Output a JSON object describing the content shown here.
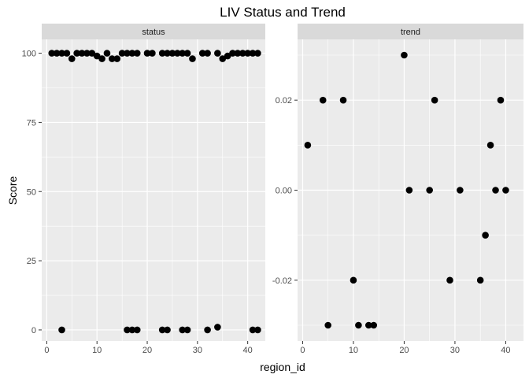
{
  "chart_data": {
    "type": "scatter",
    "title": "LIV Status and Trend",
    "xlabel": "region_id",
    "ylabel": "Score",
    "grid": true,
    "legend": "none",
    "colors": {
      "panel_bg": "#ebebeb",
      "grid": "#ffffff",
      "strip_bg": "#d9d9d9",
      "point": "#000000"
    },
    "panels": [
      {
        "name": "status",
        "xlim": [
          -1,
          43.5
        ],
        "ylim": [
          -4,
          105
        ],
        "x_ticks": [
          0,
          10,
          20,
          30,
          40
        ],
        "y_ticks": [
          0,
          25,
          50,
          75,
          100
        ],
        "y_tick_labels": [
          "0",
          "25",
          "50",
          "75",
          "100"
        ],
        "points": [
          [
            1,
            100
          ],
          [
            2,
            100
          ],
          [
            3,
            100
          ],
          [
            4,
            100
          ],
          [
            5,
            98
          ],
          [
            6,
            100
          ],
          [
            7,
            100
          ],
          [
            8,
            100
          ],
          [
            9,
            100
          ],
          [
            10,
            99
          ],
          [
            11,
            98
          ],
          [
            12,
            100
          ],
          [
            13,
            98
          ],
          [
            14,
            98
          ],
          [
            15,
            100
          ],
          [
            16,
            100
          ],
          [
            17,
            100
          ],
          [
            18,
            100
          ],
          [
            20,
            100
          ],
          [
            21,
            100
          ],
          [
            23,
            100
          ],
          [
            24,
            100
          ],
          [
            25,
            100
          ],
          [
            26,
            100
          ],
          [
            27,
            100
          ],
          [
            28,
            100
          ],
          [
            29,
            98
          ],
          [
            31,
            100
          ],
          [
            32,
            100
          ],
          [
            34,
            100
          ],
          [
            35,
            98
          ],
          [
            36,
            99
          ],
          [
            37,
            100
          ],
          [
            38,
            100
          ],
          [
            39,
            100
          ],
          [
            40,
            100
          ],
          [
            41,
            100
          ],
          [
            42,
            100
          ],
          [
            3,
            0
          ],
          [
            16,
            0
          ],
          [
            17,
            0
          ],
          [
            18,
            0
          ],
          [
            23,
            0
          ],
          [
            24,
            0
          ],
          [
            27,
            0
          ],
          [
            28,
            0
          ],
          [
            32,
            0
          ],
          [
            34,
            1
          ],
          [
            41,
            0
          ],
          [
            42,
            0
          ]
        ]
      },
      {
        "name": "trend",
        "xlim": [
          -1,
          43.5
        ],
        "ylim": [
          -0.0335,
          0.0335
        ],
        "x_ticks": [
          0,
          10,
          20,
          30,
          40
        ],
        "y_ticks": [
          -0.02,
          0.0,
          0.02
        ],
        "y_tick_labels": [
          "-0.02",
          "0.00",
          "0.02"
        ],
        "points": [
          [
            1,
            0.01
          ],
          [
            4,
            0.02
          ],
          [
            5,
            -0.03
          ],
          [
            8,
            0.02
          ],
          [
            10,
            -0.02
          ],
          [
            11,
            -0.03
          ],
          [
            13,
            -0.03
          ],
          [
            14,
            -0.03
          ],
          [
            20,
            0.03
          ],
          [
            21,
            0.0
          ],
          [
            25,
            0.0
          ],
          [
            26,
            0.02
          ],
          [
            29,
            -0.02
          ],
          [
            31,
            0.0
          ],
          [
            35,
            -0.02
          ],
          [
            36,
            -0.01
          ],
          [
            37,
            0.01
          ],
          [
            38,
            0.0
          ],
          [
            39,
            0.02
          ],
          [
            40,
            0.0
          ]
        ]
      }
    ]
  }
}
